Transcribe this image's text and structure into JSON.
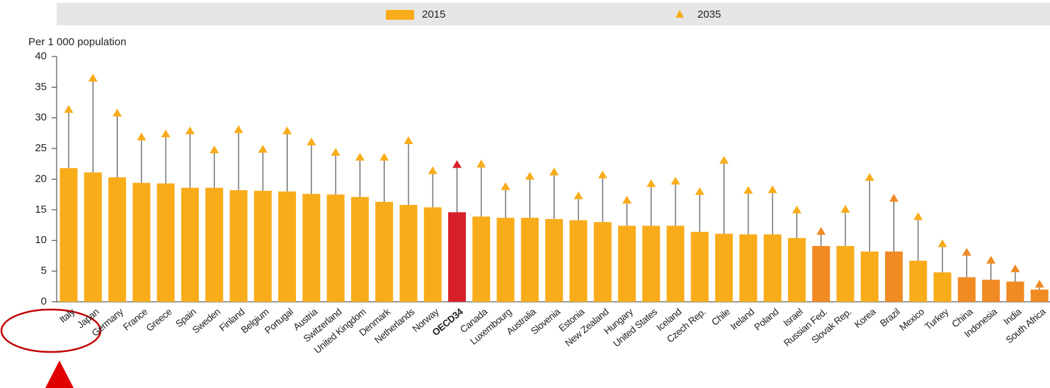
{
  "chart_data": {
    "type": "bar",
    "y_label": "Per 1 000 population",
    "categories": [
      "Italy",
      "Japan",
      "Germany",
      "France",
      "Greece",
      "Spain",
      "Sweden",
      "Finland",
      "Belgium",
      "Portugal",
      "Austria",
      "Switzerland",
      "United Kingdom",
      "Denmark",
      "Netherlands",
      "Norway",
      "OECD34",
      "Canada",
      "Luxembourg",
      "Australia",
      "Slovenia",
      "Estonia",
      "New Zealand",
      "Hungary",
      "United States",
      "Iceland",
      "Czech Rep.",
      "Chile",
      "Ireland",
      "Poland",
      "Israel",
      "Russian Fed.",
      "Slovak Rep.",
      "Korea",
      "Brazil",
      "Mexico",
      "Turkey",
      "China",
      "Indonesia",
      "India",
      "South Africa"
    ],
    "colors": [
      "#f9ac1a",
      "#f9ac1a",
      "#f9ac1a",
      "#f9ac1a",
      "#f9ac1a",
      "#f9ac1a",
      "#f9ac1a",
      "#f9ac1a",
      "#f9ac1a",
      "#f9ac1a",
      "#f9ac1a",
      "#f9ac1a",
      "#f9ac1a",
      "#f9ac1a",
      "#f9ac1a",
      "#f9ac1a",
      "#d7202a",
      "#f9ac1a",
      "#f9ac1a",
      "#f9ac1a",
      "#f9ac1a",
      "#f9ac1a",
      "#f9ac1a",
      "#f9ac1a",
      "#f9ac1a",
      "#f9ac1a",
      "#f9ac1a",
      "#f9ac1a",
      "#f9ac1a",
      "#f9ac1a",
      "#f9ac1a",
      "#f08a23",
      "#f9ac1a",
      "#f9ac1a",
      "#f08a23",
      "#f9ac1a",
      "#f9ac1a",
      "#f08a23",
      "#f08a23",
      "#f08a23",
      "#f08a23"
    ],
    "bold_category": 16,
    "series": [
      {
        "name": "2015",
        "marker": "bar",
        "color": "#f9ac1a",
        "values": [
          21.8,
          21.1,
          20.3,
          19.4,
          19.3,
          18.6,
          18.6,
          18.2,
          18.1,
          18.0,
          17.6,
          17.5,
          17.1,
          16.3,
          15.8,
          15.4,
          14.6,
          13.9,
          13.7,
          13.7,
          13.5,
          13.3,
          13.0,
          12.4,
          12.4,
          12.4,
          11.4,
          11.1,
          11.0,
          11.0,
          10.4,
          9.1,
          9.1,
          8.2,
          8.2,
          6.7,
          4.8,
          4.0,
          3.6,
          3.3,
          2.0
        ]
      },
      {
        "name": "2035",
        "marker": "triangle",
        "color": "#f9ac1a",
        "values": [
          31.4,
          36.5,
          30.8,
          26.9,
          27.4,
          27.9,
          24.8,
          28.1,
          24.9,
          27.9,
          26.1,
          24.4,
          23.6,
          23.6,
          26.3,
          21.4,
          22.4,
          22.5,
          18.8,
          20.5,
          21.2,
          17.3,
          20.7,
          16.6,
          19.3,
          19.7,
          18.0,
          23.1,
          18.2,
          18.3,
          15.0,
          11.5,
          15.1,
          20.3,
          16.9,
          13.9,
          9.5,
          8.1,
          6.8,
          5.4,
          2.9
        ]
      }
    ],
    "ylim": [
      0,
      40
    ],
    "yticks": [
      0,
      5,
      10,
      15,
      20,
      25,
      30,
      35,
      40
    ],
    "grid": false,
    "legend": "top"
  }
}
